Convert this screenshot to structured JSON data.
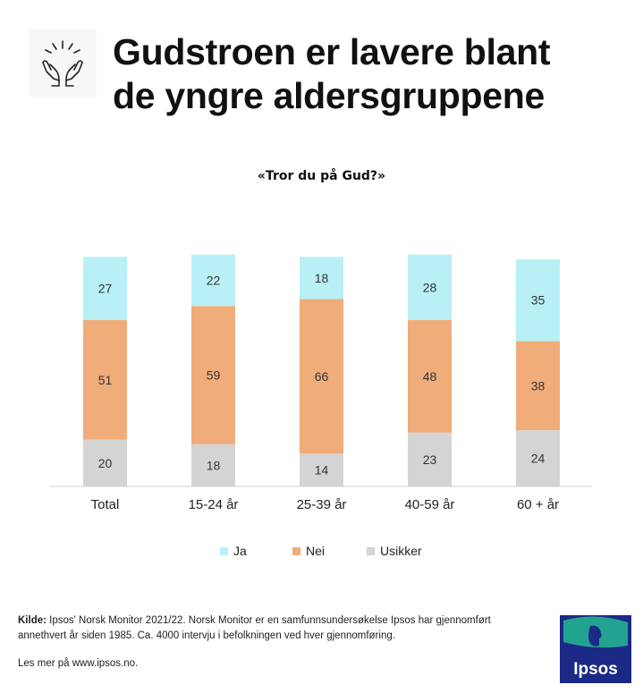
{
  "header": {
    "title_line1": "Gudstroen er lavere blant",
    "title_line2": "de yngre aldersgruppene",
    "icon": "praying-hands-icon"
  },
  "chart_data": {
    "type": "bar",
    "stacked": true,
    "title": "«Tror du på Gud?»",
    "categories": [
      "Total",
      "15-24 år",
      "25-39 år",
      "40-59 år",
      "60 + år"
    ],
    "series": [
      {
        "name": "Usikker",
        "values": [
          20,
          18,
          14,
          23,
          24
        ],
        "color": "#d4d4d4"
      },
      {
        "name": "Nei",
        "values": [
          51,
          59,
          66,
          48,
          38
        ],
        "color": "#f0ad7a"
      },
      {
        "name": "Ja",
        "values": [
          27,
          22,
          18,
          28,
          35
        ],
        "color": "#b8f0f5"
      }
    ],
    "legend_order": [
      "Ja",
      "Nei",
      "Usikker"
    ],
    "legend_placement": "bottom",
    "grid": false,
    "ylim": [
      0,
      100
    ]
  },
  "footer": {
    "source_label": "Kilde:",
    "source_text": "Ipsos' Norsk Monitor 2021/22. Norsk Monitor er en samfunnsundersøkelse Ipsos har gjennomført annethvert år siden 1985. Ca. 4000 intervju i befolkningen ved hver gjennomføring.",
    "more_info": "Les mer på www.ipsos.no.",
    "logo_text": "Ipsos"
  }
}
